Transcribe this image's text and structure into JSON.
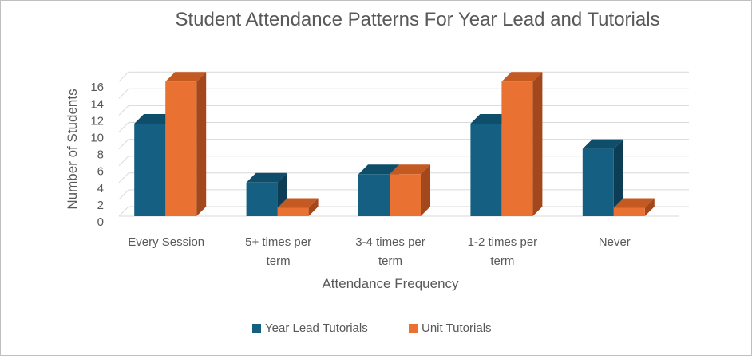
{
  "chart_data": {
    "type": "bar",
    "title": "Student Attendance Patterns For Year Lead and Tutorials",
    "xlabel": "Attendance Frequency",
    "ylabel": "Number of Students",
    "categories": [
      [
        "Every Session"
      ],
      [
        "5+ times per",
        "term"
      ],
      [
        "3-4 times per",
        "term"
      ],
      [
        "1-2 times per",
        "term"
      ],
      [
        "Never"
      ]
    ],
    "series": [
      {
        "name": "Year Lead Tutorials",
        "values": [
          11,
          4,
          5,
          11,
          8
        ],
        "color": "#156082",
        "side_color": "#0c3d54",
        "top_color": "#0f4e6b"
      },
      {
        "name": "Unit Tutorials",
        "values": [
          16,
          1,
          5,
          16,
          1
        ],
        "color": "#e97132",
        "side_color": "#a3481c",
        "top_color": "#c45a22"
      }
    ],
    "ylim": [
      0,
      16
    ],
    "yticks": [
      0,
      2,
      4,
      6,
      8,
      10,
      12,
      14,
      16
    ],
    "grid": true,
    "legend_position": "bottom",
    "style": "3d-clustered-column"
  }
}
